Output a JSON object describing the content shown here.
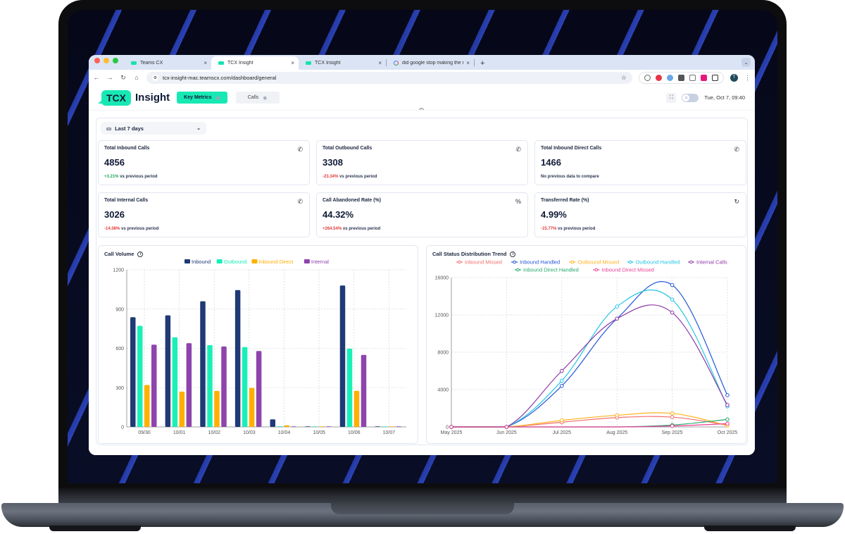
{
  "browser": {
    "tabs": [
      {
        "title": "Teams CX",
        "active": false,
        "favicon": "tcx-favicon"
      },
      {
        "title": "TCX Insight",
        "active": true,
        "favicon": "tcx-favicon"
      },
      {
        "title": "TCX Insight",
        "active": false,
        "favicon": "tcx-favicon"
      },
      {
        "title": "did google stop making the n",
        "active": false,
        "favicon": "google-favicon"
      }
    ],
    "new_tab_label": "+",
    "close_label": "×",
    "url": "tcx-insight-mac.teamscx.com/dashboard/general",
    "profile_initial": "T",
    "nav": {
      "back": "←",
      "forward": "→",
      "reload": "↻",
      "home": "⌂"
    }
  },
  "app": {
    "logo_badge": "TCX",
    "logo_text": "Insight",
    "views": [
      {
        "label": "Key Metrics",
        "active": true
      },
      {
        "label": "Calls",
        "active": false
      }
    ],
    "datetime": "Tue, Oct 7, 09:40",
    "date_range": "Last 7 days",
    "collapse_icon": "«"
  },
  "metrics": [
    {
      "title": "Total Inbound Calls",
      "value": "4856",
      "delta": "+3.21%",
      "delta_dir": "pos",
      "suffix": " vs previous period",
      "icon": "phone-incoming-icon"
    },
    {
      "title": "Total Outbound Calls",
      "value": "3308",
      "delta": "-23.34%",
      "delta_dir": "neg",
      "suffix": " vs previous period",
      "icon": "phone-outgoing-icon"
    },
    {
      "title": "Total Inbound Direct Calls",
      "value": "1466",
      "delta": "",
      "delta_dir": "none",
      "suffix": "No previous data to compare",
      "icon": "phone-incoming-icon"
    },
    {
      "title": "Total Internal Calls",
      "value": "3026",
      "delta": "-14.08%",
      "delta_dir": "neg",
      "suffix": " vs previous period",
      "icon": "phone-icon"
    },
    {
      "title": "Call Abandoned Rate (%)",
      "value": "44.32%",
      "delta": "+264.54%",
      "delta_dir": "neg",
      "suffix": " vs previous period",
      "icon": "percent-icon"
    },
    {
      "title": "Transferred Rate (%)",
      "value": "4.99%",
      "delta": "-15.77%",
      "delta_dir": "neg",
      "suffix": " vs previous period",
      "icon": "refresh-icon"
    }
  ],
  "chart_data": [
    {
      "type": "bar",
      "title": "Call Volume",
      "categories": [
        "09/30",
        "10/01",
        "10/02",
        "10/03",
        "10/04",
        "10/05",
        "10/06",
        "10/07"
      ],
      "series": [
        {
          "name": "Inbound",
          "color": "#1f3a75",
          "values": [
            838,
            852,
            960,
            1045,
            58,
            2,
            1080,
            4
          ]
        },
        {
          "name": "Outbound",
          "color": "#19f0b8",
          "values": [
            772,
            685,
            625,
            610,
            5,
            2,
            598,
            2
          ]
        },
        {
          "name": "Inbound Direct",
          "color": "#ffb000",
          "values": [
            320,
            270,
            275,
            298,
            12,
            3,
            275,
            0
          ]
        },
        {
          "name": "Internal",
          "color": "#8e44ad",
          "values": [
            628,
            640,
            615,
            580,
            2,
            0,
            550,
            0
          ]
        }
      ],
      "ylim": [
        0,
        1200
      ],
      "yticks": [
        0,
        300,
        600,
        900,
        1200
      ],
      "grid": true,
      "legend_position": "top"
    },
    {
      "type": "line",
      "title": "Call Status Distribution Trend",
      "categories": [
        "May 2025",
        "Jun 2025",
        "Jul 2025",
        "Aug 2025",
        "Sep 2025",
        "Oct 2025"
      ],
      "series": [
        {
          "name": "Inbound Missed",
          "color": "#f46e6e",
          "values": [
            0,
            0,
            500,
            1000,
            1050,
            200
          ]
        },
        {
          "name": "Inbound Handled",
          "color": "#2456d6",
          "values": [
            0,
            0,
            4400,
            11600,
            15200,
            3400
          ]
        },
        {
          "name": "Outbound Missed",
          "color": "#ffb21e",
          "values": [
            0,
            0,
            700,
            1250,
            1450,
            150
          ]
        },
        {
          "name": "Outbound Handled",
          "color": "#23c6e4",
          "values": [
            0,
            0,
            4950,
            12900,
            13650,
            2200
          ]
        },
        {
          "name": "Internal Calls",
          "color": "#8e38a8",
          "values": [
            0,
            0,
            6000,
            11600,
            12250,
            2350
          ]
        },
        {
          "name": "Inbound Direct Handled",
          "color": "#24a86c",
          "values": [
            0,
            0,
            0,
            0,
            200,
            800
          ]
        },
        {
          "name": "Inbound Direct Missed",
          "color": "#ea3f95",
          "values": [
            0,
            0,
            0,
            0,
            100,
            350
          ]
        }
      ],
      "ylim": [
        0,
        16000
      ],
      "yticks": [
        0,
        4000,
        8000,
        12000,
        16000
      ],
      "grid": true,
      "legend_position": "top"
    }
  ]
}
